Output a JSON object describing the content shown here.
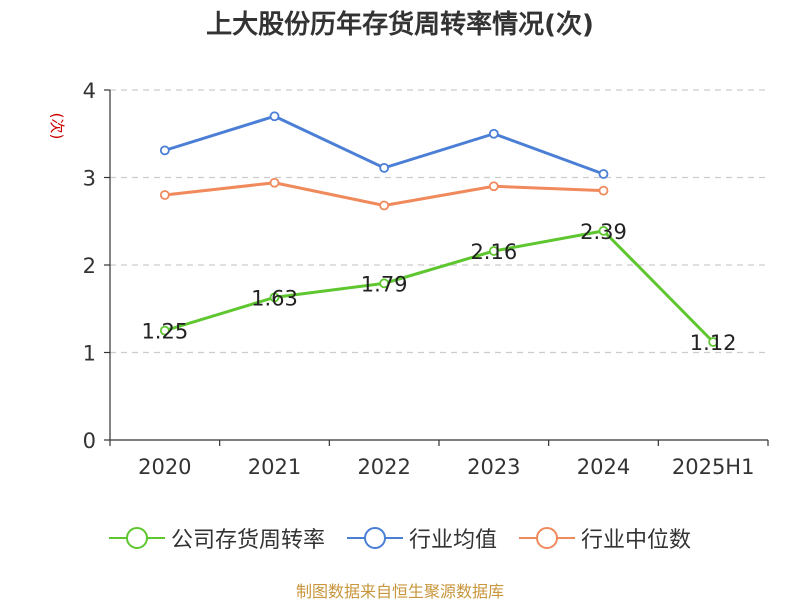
{
  "chart_data": {
    "type": "line",
    "title": "上大股份历年存货周转率情况(次)",
    "ylabel": "(次)",
    "xlabel": "",
    "categories": [
      "2020",
      "2021",
      "2022",
      "2023",
      "2024",
      "2025H1"
    ],
    "ylim": [
      0,
      4
    ],
    "yticks": [
      "0",
      "1",
      "2",
      "3",
      "4"
    ],
    "grid": true,
    "legend_position": "bottom",
    "series": [
      {
        "name": "公司存货周转率",
        "color": "#5ec62f",
        "values": [
          1.25,
          1.63,
          1.79,
          2.16,
          2.39,
          1.12
        ],
        "labels": [
          "1.25",
          "1.63",
          "1.79",
          "2.16",
          "2.39",
          "1.12"
        ]
      },
      {
        "name": "行业均值",
        "color": "#4b7fd6",
        "values": [
          3.31,
          3.7,
          3.11,
          3.5,
          3.04,
          null
        ]
      },
      {
        "name": "行业中位数",
        "color": "#f08a5c",
        "values": [
          2.8,
          2.94,
          2.68,
          2.9,
          2.85,
          null
        ]
      }
    ]
  },
  "source": "制图数据来自恒生聚源数据库"
}
